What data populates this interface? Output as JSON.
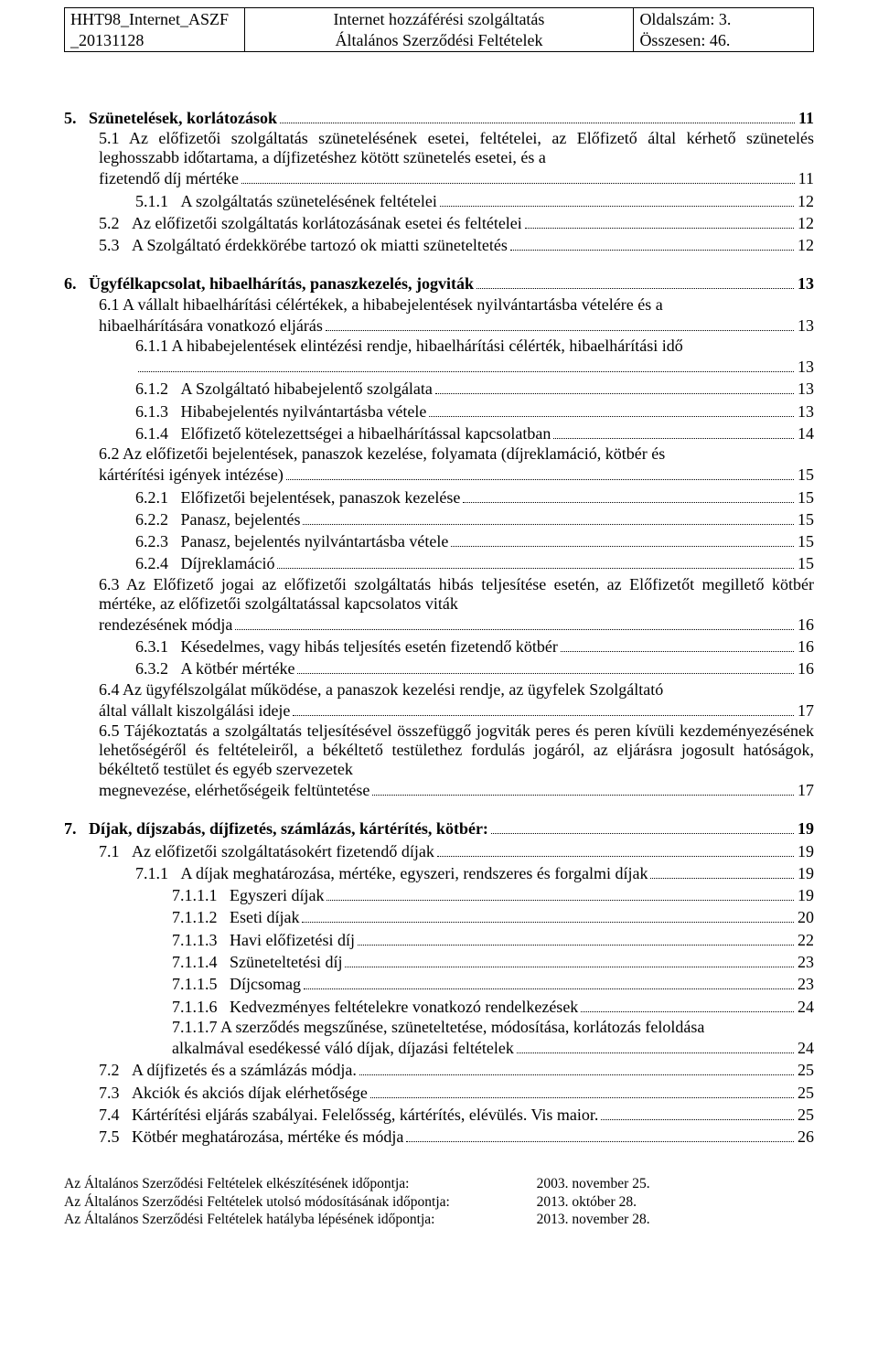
{
  "header": {
    "left_line1": "HHT98_Internet_ASZF",
    "left_line2": "_20131128",
    "center_line1": "Internet hozzáférési szolgáltatás",
    "center_line2": "Általános Szerződési Feltételek",
    "right_line1": "Oldalszám: 3.",
    "right_line2": "Összesen: 46."
  },
  "toc": [
    {
      "type": "top",
      "num": "5.",
      "text": "Szünetelések, korlátozások",
      "page": "11",
      "bold": true
    },
    {
      "type": "l1",
      "num": "5.1",
      "body": "Az előfizetői szolgáltatás szünetelésének esetei, feltételei, az Előfizető által kérhető szünetelés leghosszabb időtartama, a díjfizetéshez kötött szünetelés esetei, és a",
      "tail": "fizetendő díj mértéke",
      "page": "11"
    },
    {
      "type": "l2",
      "num": "5.1.1",
      "text": "A szolgáltatás szünetelésének feltételei",
      "page": "12"
    },
    {
      "type": "l1",
      "num": "5.2",
      "text": "Az előfizetői szolgáltatás korlátozásának esetei és feltételei",
      "page": "12"
    },
    {
      "type": "l1",
      "num": "5.3",
      "text": "A Szolgáltató érdekkörébe tartozó ok miatti szüneteltetés",
      "page": "12"
    },
    {
      "type": "gap"
    },
    {
      "type": "top",
      "num": "6.",
      "text": "Ügyfélkapcsolat, hibaelhárítás, panaszkezelés, jogviták",
      "page": "13",
      "bold": true
    },
    {
      "type": "l1",
      "num": "6.1",
      "body": "A vállalt hibaelhárítási célértékek, a hibabejelentések nyilvántartásba vételére és a",
      "tail": "hibaelhárítására vonatkozó eljárás",
      "page": "13"
    },
    {
      "type": "l2",
      "num": "6.1.1",
      "body": "A hibabejelentések elintézési rendje, hibaelhárítási célérték, hibaelhárítási idő",
      "tail": "",
      "page": "13"
    },
    {
      "type": "l2",
      "num": "6.1.2",
      "text": "A Szolgáltató hibabejelentő szolgálata",
      "page": "13"
    },
    {
      "type": "l2",
      "num": "6.1.3",
      "text": "Hibabejelentés nyilvántartásba vétele",
      "page": "13"
    },
    {
      "type": "l2",
      "num": "6.1.4",
      "text": "Előfizető kötelezettségei a hibaelhárítással kapcsolatban",
      "page": "14"
    },
    {
      "type": "l1",
      "num": "6.2",
      "body": "Az előfizetői bejelentések, panaszok kezelése, folyamata (díjreklamáció, kötbér és",
      "tail": "kártérítési igények intézése)",
      "page": "15"
    },
    {
      "type": "l2",
      "num": "6.2.1",
      "text": "Előfizetői bejelentések, panaszok kezelése",
      "page": "15"
    },
    {
      "type": "l2",
      "num": "6.2.2",
      "text": "Panasz, bejelentés",
      "page": "15"
    },
    {
      "type": "l2",
      "num": "6.2.3",
      "text": "Panasz, bejelentés nyilvántartásba vétele",
      "page": "15"
    },
    {
      "type": "l2",
      "num": "6.2.4",
      "text": "Díjreklamáció",
      "page": "15"
    },
    {
      "type": "l1",
      "num": "6.3",
      "body": "Az Előfizető jogai az előfizetői szolgáltatás hibás teljesítése esetén, az Előfizetőt megillető kötbér mértéke, az előfizetői szolgáltatással kapcsolatos viták",
      "tail": "rendezésének módja",
      "page": "16"
    },
    {
      "type": "l2",
      "num": "6.3.1",
      "text": "Késedelmes, vagy hibás teljesítés esetén fizetendő kötbér",
      "page": "16"
    },
    {
      "type": "l2",
      "num": "6.3.2",
      "text": "A kötbér mértéke",
      "page": "16"
    },
    {
      "type": "l1",
      "num": "6.4",
      "body": "Az ügyfélszolgálat működése, a panaszok kezelési rendje, az ügyfelek Szolgáltató",
      "tail": "által vállalt kiszolgálási ideje",
      "page": "17"
    },
    {
      "type": "l1",
      "num": "6.5",
      "body": "Tájékoztatás a szolgáltatás teljesítésével összefüggő jogviták peres és peren kívüli kezdeményezésének lehetőségéről és feltételeiről, a békéltető testülethez fordulás jogáról, az eljárásra jogosult hatóságok, békéltető testület és egyéb szervezetek",
      "tail": "megnevezése, elérhetőségeik feltüntetése",
      "page": "17"
    },
    {
      "type": "gap"
    },
    {
      "type": "top",
      "num": "7.",
      "text": "Díjak, díjszabás, díjfizetés, számlázás, kártérítés, kötbér:",
      "page": "19",
      "bold": true
    },
    {
      "type": "l1",
      "num": "7.1",
      "text": "Az előfizetői szolgáltatásokért fizetendő díjak",
      "page": "19"
    },
    {
      "type": "l2",
      "num": "7.1.1",
      "text": "A díjak meghatározása, mértéke, egyszeri, rendszeres és forgalmi díjak",
      "page": "19"
    },
    {
      "type": "l3",
      "num": "7.1.1.1",
      "text": "Egyszeri díjak",
      "page": "19"
    },
    {
      "type": "l3",
      "num": "7.1.1.2",
      "text": "Eseti díjak",
      "page": "20"
    },
    {
      "type": "l3",
      "num": "7.1.1.3",
      "text": "Havi előfizetési díj",
      "page": "22"
    },
    {
      "type": "l3",
      "num": "7.1.1.4",
      "text": "Szüneteltetési díj",
      "page": "23"
    },
    {
      "type": "l3",
      "num": "7.1.1.5",
      "text": "Díjcsomag",
      "page": "23"
    },
    {
      "type": "l3",
      "num": "7.1.1.6",
      "text": "Kedvezményes feltételekre vonatkozó rendelkezések",
      "page": "24"
    },
    {
      "type": "l3",
      "num": "7.1.1.7",
      "body": "A szerződés megszűnése, szüneteltetése, módosítása, korlátozás feloldása",
      "tail": "alkalmával esedékessé váló díjak, díjazási feltételek",
      "page": "24"
    },
    {
      "type": "l1",
      "num": "7.2",
      "text": "A díjfizetés és a számlázás módja.",
      "page": "25"
    },
    {
      "type": "l1",
      "num": "7.3",
      "text": "Akciók és akciós díjak elérhetősége",
      "page": "25"
    },
    {
      "type": "l1",
      "num": "7.4",
      "text": "Kártérítési eljárás szabályai. Felelősség, kártérítés, elévülés. Vis maior.",
      "page": "25"
    },
    {
      "type": "l1",
      "num": "7.5",
      "text": "Kötbér meghatározása, mértéke és módja",
      "page": "26"
    }
  ],
  "footer": {
    "r1l": "Az Általános Szerződési Feltételek elkészítésének időpontja:",
    "r1r": "2003. november 25.",
    "r2l": "Az Általános Szerződési Feltételek utolsó módosításának időpontja:",
    "r2r": "2013. október 28.",
    "r3l": "Az Általános Szerződési Feltételek hatályba lépésének időpontja:",
    "r3r": "2013. november 28."
  }
}
